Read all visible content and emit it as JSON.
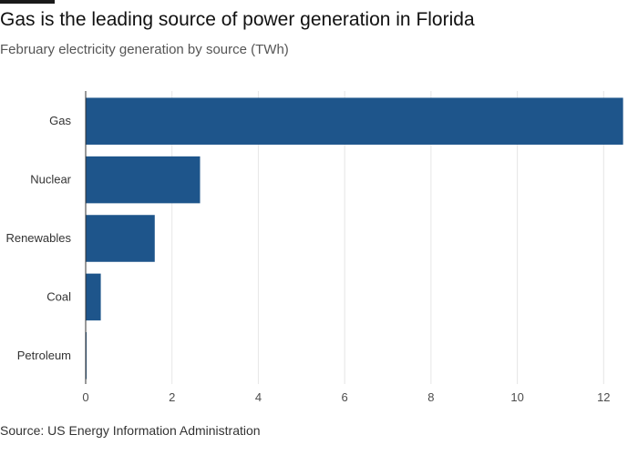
{
  "header": {
    "title": "Gas is the leading source of power generation in Florida",
    "subtitle": "February electricity generation by source (TWh)"
  },
  "footer": {
    "source": "Source: US Energy Information Administration"
  },
  "colors": {
    "bar": "#1e558b",
    "grid": "#e6e6e6",
    "axis": "#333333"
  },
  "chart_data": {
    "type": "bar",
    "orientation": "horizontal",
    "title": "Gas is the leading source of power generation in Florida",
    "subtitle": "February electricity generation by source (TWh)",
    "categories": [
      "Gas",
      "Nuclear",
      "Renewables",
      "Coal",
      "Petroleum"
    ],
    "values": [
      12.45,
      2.65,
      1.6,
      0.35,
      0.02
    ],
    "xlabel": "",
    "ylabel": "",
    "xlim": [
      0,
      12.5
    ],
    "xticks": [
      0,
      2,
      4,
      6,
      8,
      10,
      12
    ],
    "grid": true,
    "legend": "none"
  }
}
